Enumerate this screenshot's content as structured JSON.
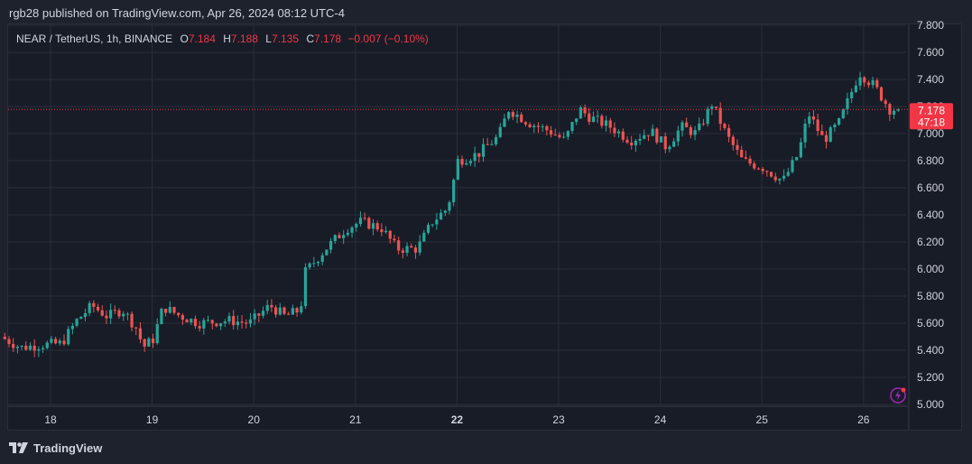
{
  "header": {
    "published": "rgb28 published on TradingView.com, Apr 26, 2024 08:12 UTC-4"
  },
  "legend": {
    "symbol": "NEAR / TetherUS, 1h, BINANCE",
    "o_label": "O",
    "o_value": "7.184",
    "h_label": "H",
    "h_value": "7.188",
    "l_label": "L",
    "l_value": "7.135",
    "c_label": "C",
    "c_value": "7.178",
    "change": "−0.007 (−0.10%)"
  },
  "price_tag": {
    "price": "7.178",
    "countdown": "47:18"
  },
  "footer": {
    "brand": "TradingView"
  },
  "colors": {
    "up": "#26a69a",
    "down": "#ef5350",
    "background": "#181c27",
    "grid": "#2a2e39",
    "price_line": "#f23645",
    "text": "#d1d4dc"
  },
  "icons": [
    "tradingview-logo-icon",
    "lightning-alert-icon"
  ],
  "chart_data": {
    "type": "candlestick",
    "title": "NEAR / TetherUS, 1h, BINANCE",
    "y_ticks": [
      "5.000",
      "5.200",
      "5.400",
      "5.600",
      "5.800",
      "6.000",
      "6.200",
      "6.400",
      "6.600",
      "6.800",
      "7.000",
      "7.200",
      "7.400",
      "7.600",
      "7.800"
    ],
    "ylim": [
      5.0,
      7.8
    ],
    "x_ticks": [
      {
        "label": "18",
        "day": 18,
        "bold": false
      },
      {
        "label": "19",
        "day": 19,
        "bold": false
      },
      {
        "label": "20",
        "day": 20,
        "bold": false
      },
      {
        "label": "21",
        "day": 21,
        "bold": false
      },
      {
        "label": "22",
        "day": 22,
        "bold": true
      },
      {
        "label": "23",
        "day": 23,
        "bold": false
      },
      {
        "label": "24",
        "day": 24,
        "bold": false
      },
      {
        "label": "25",
        "day": 25,
        "bold": false
      },
      {
        "label": "26",
        "day": 26,
        "bold": false
      }
    ],
    "last_price": 7.178,
    "grid": true,
    "path_anchors": [
      {
        "day": 17.55,
        "price": 5.5
      },
      {
        "day": 17.75,
        "price": 5.42
      },
      {
        "day": 17.95,
        "price": 5.44
      },
      {
        "day": 18.15,
        "price": 5.45
      },
      {
        "day": 18.3,
        "price": 5.62
      },
      {
        "day": 18.45,
        "price": 5.73
      },
      {
        "day": 18.6,
        "price": 5.65
      },
      {
        "day": 18.75,
        "price": 5.7
      },
      {
        "day": 18.9,
        "price": 5.55
      },
      {
        "day": 18.95,
        "price": 5.42
      },
      {
        "day": 19.05,
        "price": 5.48
      },
      {
        "day": 19.15,
        "price": 5.72
      },
      {
        "day": 19.3,
        "price": 5.66
      },
      {
        "day": 19.5,
        "price": 5.6
      },
      {
        "day": 19.8,
        "price": 5.62
      },
      {
        "day": 20.0,
        "price": 5.6
      },
      {
        "day": 20.2,
        "price": 5.73
      },
      {
        "day": 20.35,
        "price": 5.65
      },
      {
        "day": 20.5,
        "price": 5.7
      },
      {
        "day": 20.55,
        "price": 5.98
      },
      {
        "day": 20.75,
        "price": 6.15
      },
      {
        "day": 20.95,
        "price": 6.3
      },
      {
        "day": 21.1,
        "price": 6.35
      },
      {
        "day": 21.3,
        "price": 6.3
      },
      {
        "day": 21.45,
        "price": 6.15
      },
      {
        "day": 21.65,
        "price": 6.15
      },
      {
        "day": 21.8,
        "price": 6.35
      },
      {
        "day": 21.95,
        "price": 6.45
      },
      {
        "day": 22.05,
        "price": 6.8
      },
      {
        "day": 22.25,
        "price": 6.85
      },
      {
        "day": 22.45,
        "price": 6.98
      },
      {
        "day": 22.55,
        "price": 7.18
      },
      {
        "day": 22.75,
        "price": 7.08
      },
      {
        "day": 22.95,
        "price": 7.02
      },
      {
        "day": 23.1,
        "price": 6.95
      },
      {
        "day": 23.25,
        "price": 7.18
      },
      {
        "day": 23.35,
        "price": 7.12
      },
      {
        "day": 23.55,
        "price": 7.05
      },
      {
        "day": 23.75,
        "price": 6.95
      },
      {
        "day": 23.95,
        "price": 7.02
      },
      {
        "day": 24.1,
        "price": 6.9
      },
      {
        "day": 24.25,
        "price": 7.05
      },
      {
        "day": 24.4,
        "price": 7.0
      },
      {
        "day": 24.55,
        "price": 7.22
      },
      {
        "day": 24.7,
        "price": 6.98
      },
      {
        "day": 24.85,
        "price": 6.8
      },
      {
        "day": 25.05,
        "price": 6.75
      },
      {
        "day": 25.25,
        "price": 6.65
      },
      {
        "day": 25.4,
        "price": 6.85
      },
      {
        "day": 25.5,
        "price": 7.15
      },
      {
        "day": 25.65,
        "price": 6.95
      },
      {
        "day": 25.8,
        "price": 7.08
      },
      {
        "day": 25.92,
        "price": 7.3
      },
      {
        "day": 26.0,
        "price": 7.45
      },
      {
        "day": 26.15,
        "price": 7.35
      },
      {
        "day": 26.3,
        "price": 7.18
      }
    ]
  }
}
